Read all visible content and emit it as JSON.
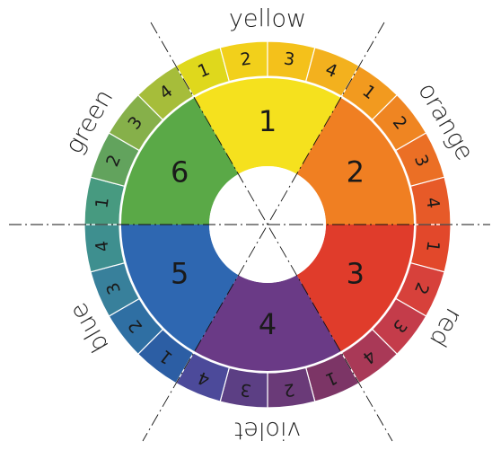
{
  "sectors": [
    {
      "label": "1",
      "color": "#f5e11e"
    },
    {
      "label": "2",
      "color": "#f07f22"
    },
    {
      "label": "3",
      "color": "#e03c2b"
    },
    {
      "label": "4",
      "color": "#6a3a86"
    },
    {
      "label": "5",
      "color": "#2e67b1"
    },
    {
      "label": "6",
      "color": "#5aa947"
    }
  ],
  "ring": [
    {
      "name": "yellow",
      "segments": [
        {
          "label": "1",
          "color": "#dfd81c"
        },
        {
          "label": "2",
          "color": "#f2d01b"
        },
        {
          "label": "3",
          "color": "#f4c11b"
        },
        {
          "label": "4",
          "color": "#f3b11e"
        }
      ]
    },
    {
      "name": "orange",
      "segments": [
        {
          "label": "1",
          "color": "#f29a1f"
        },
        {
          "label": "2",
          "color": "#ef8522"
        },
        {
          "label": "3",
          "color": "#eb6f25"
        },
        {
          "label": "4",
          "color": "#e75a28"
        }
      ]
    },
    {
      "name": "red",
      "segments": [
        {
          "label": "1",
          "color": "#e2482b"
        },
        {
          "label": "2",
          "color": "#d7413b"
        },
        {
          "label": "3",
          "color": "#c43c4a"
        },
        {
          "label": "4",
          "color": "#a93957"
        }
      ]
    },
    {
      "name": "violet",
      "segments": [
        {
          "label": "1",
          "color": "#7c3566"
        },
        {
          "label": "2",
          "color": "#6a3a78"
        },
        {
          "label": "3",
          "color": "#5c3f84"
        },
        {
          "label": "4",
          "color": "#4c4a9a"
        }
      ]
    },
    {
      "name": "blue",
      "segments": [
        {
          "label": "1",
          "color": "#2c5ea4"
        },
        {
          "label": "2",
          "color": "#2f6fa3"
        },
        {
          "label": "3",
          "color": "#38809b"
        },
        {
          "label": "4",
          "color": "#3e8f8f"
        }
      ]
    },
    {
      "name": "green",
      "segments": [
        {
          "label": "1",
          "color": "#479a80"
        },
        {
          "label": "2",
          "color": "#62a35d"
        },
        {
          "label": "3",
          "color": "#86b04a"
        },
        {
          "label": "4",
          "color": "#a6bd3a"
        }
      ]
    }
  ]
}
